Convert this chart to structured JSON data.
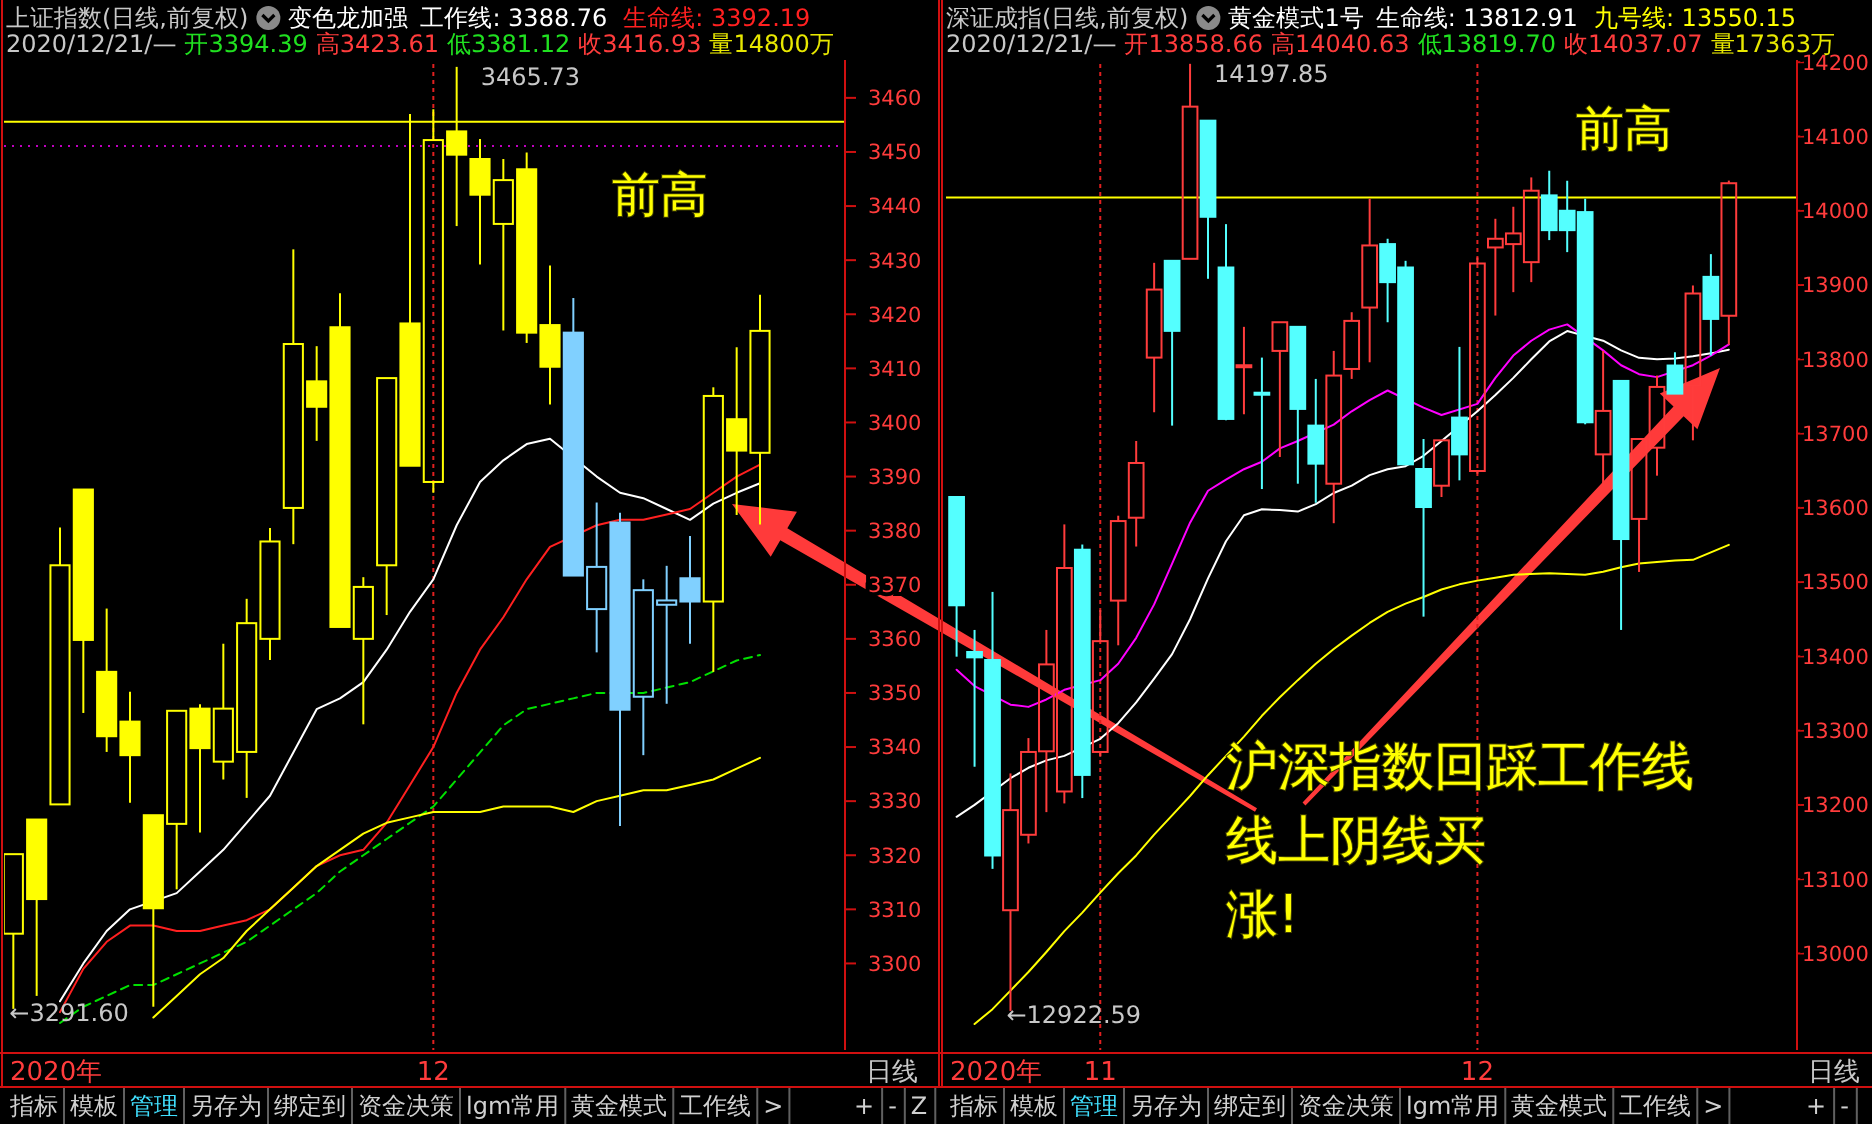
{
  "chart_data": [
    {
      "type": "candlestick",
      "title": "上证指数(日线,前复权)",
      "subtitle": "变色龙加强",
      "legend": "top",
      "categories": [
        null,
        null,
        null,
        null,
        null,
        null,
        null,
        null,
        null,
        null,
        null,
        null,
        null,
        null,
        null,
        null,
        null,
        null,
        "12",
        null,
        null,
        null,
        null,
        null,
        null,
        null,
        null,
        null,
        null,
        null,
        null,
        null,
        null
      ],
      "ohlc": [
        [
          3305.5,
          3320.2,
          3291.6,
          3320.2
        ],
        [
          3326.6,
          3326.6,
          3294,
          3311.9
        ],
        [
          3329.4,
          3380.6,
          3329.4,
          3373.6
        ],
        [
          3387.6,
          3387.6,
          3346.3,
          3359.8
        ],
        [
          3353.9,
          3365.6,
          3339.1,
          3342
        ],
        [
          3344.7,
          3350.2,
          3329.7,
          3338.5
        ],
        [
          3327.4,
          3327.4,
          3292,
          3310.2
        ],
        [
          3325.8,
          3346.7,
          3313.7,
          3346.7
        ],
        [
          3347.1,
          3347.9,
          3324.2,
          3339.8
        ],
        [
          3337.3,
          3359.1,
          3334,
          3347.1
        ],
        [
          3339.1,
          3367.4,
          3330.6,
          3362.9
        ],
        [
          3360,
          3380.5,
          3356.1,
          3378
        ],
        [
          3384.2,
          3432,
          3377.5,
          3414.5
        ],
        [
          3407.6,
          3414.1,
          3396.6,
          3402.9
        ],
        [
          3417.6,
          3423.9,
          3362.2,
          3362.2
        ],
        [
          3360,
          3371.4,
          3344.2,
          3369.6
        ],
        [
          3373.6,
          3408.2,
          3364.4,
          3408.2
        ],
        [
          3418.3,
          3457,
          3392,
          3392
        ],
        [
          3389,
          3457.9,
          3387,
          3452.2
        ],
        [
          3453.8,
          3465.73,
          3436.3,
          3449.5
        ],
        [
          3448.7,
          3452.4,
          3429.2,
          3442.1
        ],
        [
          3436.7,
          3448.7,
          3417,
          3444.8
        ],
        [
          3446.8,
          3449.9,
          3414.7,
          3416.6
        ],
        [
          3418,
          3429,
          3403.3,
          3410.3
        ],
        [
          3416.6,
          3423,
          3371.7,
          3371.7
        ],
        [
          3365.5,
          3385.2,
          3357.5,
          3373.3
        ],
        [
          3381.5,
          3383.3,
          3325.4,
          3346.9
        ],
        [
          3349.3,
          3371,
          3338.5,
          3369
        ],
        [
          3366.3,
          3373.5,
          3348,
          3367.1
        ],
        [
          3371.2,
          3379,
          3359.1,
          3366.9
        ],
        [
          3366.9,
          3406.5,
          3353.9,
          3404.9
        ],
        [
          3400.6,
          3413.9,
          3382.9,
          3394.8
        ],
        [
          3394.39,
          3423.61,
          3381.12,
          3416.93
        ]
      ],
      "colors": [
        "#ffff00",
        "#ffff00",
        "#ffff00",
        "#ffff00",
        "#ffff00",
        "#ffff00",
        "#ffff00",
        "#ffff00",
        "#ffff00",
        "#ffff00",
        "#ffff00",
        "#ffff00",
        "#ffff00",
        "#ffff00",
        "#ffff00",
        "#ffff00",
        "#ffff00",
        "#ffff00",
        "#ffff00",
        "#ffff00",
        "#ffff00",
        "#ffff00",
        "#ffff00",
        "#ffff00",
        "#80d0ff",
        "#80d0ff",
        "#80d0ff",
        "#80d0ff",
        "#80d0ff",
        "#80d0ff",
        "#ffff00",
        "#ffff00",
        "#ffff00"
      ],
      "series": [
        {
          "name": "工作线: 3388.76",
          "type": "line",
          "color": "#ffffff",
          "values": [
            null,
            null,
            3293,
            3300,
            3306,
            3310,
            null,
            3313,
            3317,
            3321,
            3326,
            3331,
            3339,
            3347,
            3349,
            3352,
            3358,
            3365,
            3371,
            3381,
            3389,
            3393,
            3396,
            3397,
            null,
            3390,
            3387,
            3386,
            3384,
            3382,
            3385,
            3387,
            3388.76
          ]
        },
        {
          "name": "生命线: 3392.19",
          "type": "line",
          "color": "#ff2020",
          "values": [
            null,
            null,
            3291,
            3299,
            3304,
            3307,
            3307,
            3306,
            3306,
            3307,
            3308,
            3310,
            3314,
            3318,
            3320,
            3321,
            3326,
            3333,
            3340,
            3350,
            3358,
            3364,
            3371,
            3377,
            null,
            3381,
            3382,
            3382,
            3383,
            3384,
            3387,
            3390,
            3392.19
          ]
        },
        {
          "type": "line",
          "color": "#00e000",
          "line_style": "dashed",
          "values": [
            null,
            null,
            3289,
            3292,
            3294,
            3296,
            3296,
            3298,
            3300,
            3302,
            3304,
            3307,
            3310,
            3313,
            3317,
            3320,
            3323,
            3326,
            3329,
            3334,
            3339,
            3344,
            3347,
            3348,
            3349,
            3350,
            null,
            3350,
            3351,
            3352,
            3354,
            3356,
            3357
          ]
        },
        {
          "type": "line",
          "color": "#ffff00",
          "values": [
            null,
            null,
            null,
            null,
            null,
            null,
            3290,
            3294,
            3298,
            3301,
            3306,
            3310,
            3314,
            3318,
            3321,
            3324,
            3326,
            3327,
            3328,
            3328,
            3328,
            3329,
            3329,
            3329,
            3328,
            3330,
            3331,
            3332,
            3332,
            3333,
            3334,
            3336,
            3338
          ]
        }
      ],
      "ylim": [
        3284,
        3467
      ],
      "yticks": [
        3300,
        3310,
        3320,
        3330,
        3340,
        3350,
        3360,
        3370,
        3380,
        3390,
        3400,
        3410,
        3420,
        3430,
        3440,
        3450,
        3460
      ],
      "ref_lines": [
        {
          "axis": "x",
          "value": "12",
          "color": "#e02020",
          "line_style": "dashed"
        },
        {
          "axis": "y",
          "value": 3455.6,
          "color": "#ffff00"
        },
        {
          "axis": "y",
          "value": 3451.1,
          "color": "#c000c0",
          "line_style": "dotted"
        }
      ],
      "annotations": [
        "2020/12/21/—",
        "开3394.39",
        "高3423.61",
        "低3381.12",
        "收3416.93",
        "量14800万",
        "前高",
        "3465.73",
        "←3291.60",
        "日线",
        "指标",
        "模板",
        "管理",
        "另存为",
        "绑定到",
        "资金决策",
        "lgm常用",
        "黄金模式",
        "工作线",
        ">",
        "+",
        "-",
        "Z",
        "2020年"
      ]
    },
    {
      "type": "candlestick",
      "title": "深证成指(日线,前复权)",
      "subtitle": "黄金模式1号",
      "legend": "top",
      "grid": "x",
      "categories": [
        null,
        null,
        null,
        null,
        null,
        null,
        null,
        null,
        "11",
        null,
        null,
        null,
        null,
        null,
        null,
        null,
        null,
        null,
        null,
        null,
        null,
        null,
        null,
        null,
        null,
        null,
        null,
        null,
        null,
        "12",
        null,
        null,
        null,
        null,
        null,
        null,
        null,
        null,
        null,
        null,
        null,
        null,
        null,
        null
      ],
      "ohlc": [
        [
          13614.6,
          13614.6,
          13399.6,
          13468.8
        ],
        [
          13405.9,
          13435.6,
          13251.4,
          13398.7
        ],
        [
          13395.1,
          13486.8,
          13113.9,
          13131.9
        ],
        [
          13058.2,
          13242.4,
          12922.59,
          13193
        ],
        [
          13159.8,
          13290,
          13148.1,
          13271.3
        ],
        [
          13272.2,
          13435.6,
          13190.3,
          13389.2
        ],
        [
          13218.1,
          13577.7,
          13202,
          13519
        ],
        [
          13543.6,
          13550.6,
          13209.2,
          13240.4
        ],
        [
          13271.3,
          13462.4,
          13264.9,
          13420.5
        ],
        [
          13475.1,
          13589.4,
          13414.9,
          13582.2
        ],
        [
          13586.7,
          13690,
          13547.9,
          13660.4
        ],
        [
          13802.3,
          13929.9,
          13728.7,
          13893.9
        ],
        [
          13932.6,
          13932.6,
          13710.7,
          13838.3
        ],
        [
          13935.3,
          14197.85,
          13935.3,
          14140.2
        ],
        [
          14121.3,
          14121.3,
          13908.4,
          13991.9
        ],
        [
          13923.6,
          13982,
          13717.9,
          13719.7
        ],
        [
          13790,
          13843.7,
          13726,
          13792
        ],
        [
          13755,
          13802.3,
          13625.3,
          13753.7
        ],
        [
          13811.3,
          13849.9,
          13668.5,
          13849.9
        ],
        [
          13843.7,
          13843.7,
          13632.5,
          13733.2
        ],
        [
          13710.7,
          13773.6,
          13606.8,
          13659.5
        ],
        [
          13632.5,
          13811.3,
          13579.3,
          13778.1
        ],
        [
          13787,
          13863.4,
          13773.6,
          13851.7
        ],
        [
          13869.7,
          14016.2,
          13796,
          13953.3
        ],
        [
          13955.1,
          13962.3,
          13849.9,
          13903.9
        ],
        [
          13923.6,
          13932.6,
          13658.6,
          13658.6
        ],
        [
          13652.3,
          13692.7,
          13453.5,
          13601.1
        ],
        [
          13629.8,
          13690.9,
          13614.6,
          13690.9
        ],
        [
          13721.5,
          13816.7,
          13637,
          13672
        ],
        [
          13649.6,
          13937.1,
          13646,
          13929
        ],
        [
          13950.6,
          13989.2,
          13858.9,
          13962.3
        ],
        [
          13955.1,
          14005.4,
          13890.4,
          13969.5
        ],
        [
          13930.8,
          14044.9,
          13903.9,
          14027
        ],
        [
          14020.7,
          14053.9,
          13960.5,
          13973.9
        ],
        [
          14000,
          14040.4,
          13944.3,
          13973.9
        ],
        [
          13998.2,
          14016.2,
          13712.5,
          13715.2
        ],
        [
          13672,
          13811.3,
          13629.8,
          13730.5
        ],
        [
          13770.9,
          13770.9,
          13435.6,
          13558
        ],
        [
          13585.1,
          13692.7,
          13513.7,
          13692.7
        ],
        [
          13681,
          13778.1,
          13643.3,
          13762.8
        ],
        [
          13791.6,
          13809.5,
          13753.8,
          13753.8
        ],
        [
          13764.6,
          13899.4,
          13690.9,
          13888.6
        ],
        [
          13911,
          13941.6,
          13805,
          13854.4
        ],
        [
          13858.66,
          14040.63,
          13819.7,
          14037.07
        ]
      ],
      "colors": [
        "#54ffff",
        "#54ffff",
        "#54ffff",
        "#ff3c3c",
        "#ff3c3c",
        "#ff3c3c",
        "#ff3c3c",
        "#54ffff",
        "#ff3c3c",
        "#ff3c3c",
        "#ff3c3c",
        "#ff3c3c",
        "#54ffff",
        "#ff3c3c",
        "#54ffff",
        "#54ffff",
        "#ff3c3c",
        "#54ffff",
        "#ff3c3c",
        "#54ffff",
        "#54ffff",
        "#ff3c3c",
        "#ff3c3c",
        "#ff3c3c",
        "#54ffff",
        "#54ffff",
        "#54ffff",
        "#ff3c3c",
        "#54ffff",
        "#ff3c3c",
        "#ff3c3c",
        "#ff3c3c",
        "#ff3c3c",
        "#54ffff",
        "#54ffff",
        "#54ffff",
        "#ff3c3c",
        "#54ffff",
        "#ff3c3c",
        "#ff3c3c",
        "#54ffff",
        "#ff3c3c",
        "#54ffff",
        "#ff3c3c"
      ],
      "series": [
        {
          "name": "生命线: 13812.91",
          "type": "line",
          "color": "#ffffff",
          "values": [
            13184,
            13200,
            null,
            13236,
            13250,
            13260,
            13266,
            null,
            13289,
            13310,
            13338,
            13370,
            13403,
            13450,
            13505,
            13555,
            13590,
            13598,
            13597,
            13595,
            13605,
            13620,
            13630,
            13644,
            13652,
            13656,
            13670,
            13690,
            null,
            13730,
            13752,
            13775,
            13800,
            13824,
            13838,
            null,
            13825,
            13812,
            13802,
            13800,
            13801,
            13804,
            13808,
            13812.91
          ]
        },
        {
          "type": "line",
          "color": "#ff00ff",
          "values": [
            13382,
            13360,
            null,
            13335,
            13332,
            13342,
            13355,
            null,
            13368,
            13390,
            13425,
            13470,
            13525,
            13580,
            13623,
            13638,
            13652,
            13662,
            13680,
            13690,
            null,
            13712,
            13730,
            13745,
            13758,
            null,
            13735,
            13725,
            null,
            13740,
            13775,
            13805,
            13825,
            13840,
            13847,
            null,
            13812,
            13792,
            13780,
            13776,
            null,
            13792,
            13805,
            13820
          ]
        },
        {
          "name": "九号线: 13550.15",
          "type": "line",
          "color": "#ffff00",
          "values": [
            null,
            12905,
            12925,
            12950,
            12975,
            13002,
            13030,
            13055,
            13082,
            13108,
            13132,
            13160,
            13186,
            13212,
            13240,
            13266,
            13292,
            13320,
            13345,
            13368,
            13390,
            13410,
            13428,
            13445,
            13460,
            13471,
            13480,
            13490,
            13497,
            13502,
            13506,
            13510,
            null,
            13512,
            13511,
            13510,
            13514,
            13520,
            13525,
            13527,
            13529,
            13530,
            13540,
            13550.15
          ]
        }
      ],
      "ylim": [
        12870,
        14203
      ],
      "yticks": [
        13000,
        13100,
        13200,
        13300,
        13400,
        13500,
        13600,
        13700,
        13800,
        13900,
        14000,
        14100,
        14200
      ],
      "ref_lines": [
        {
          "axis": "y",
          "value": 14018,
          "color": "#ffff00"
        }
      ],
      "annotations": [
        "2020/12/21/—",
        "开13858.66",
        "高14040.63",
        "低13819.70",
        "收14037.07",
        "量17363万",
        "前高",
        "14197.85",
        "←12922.59",
        "沪深指数回踩工作线线上阴线买涨!",
        "日线",
        "指标",
        "模板",
        "管理",
        "另存为",
        "绑定到",
        "资金决策",
        "lgm常用",
        "黄金模式",
        "工作线",
        ">",
        "+",
        "-",
        "2020年"
      ]
    }
  ]
}
